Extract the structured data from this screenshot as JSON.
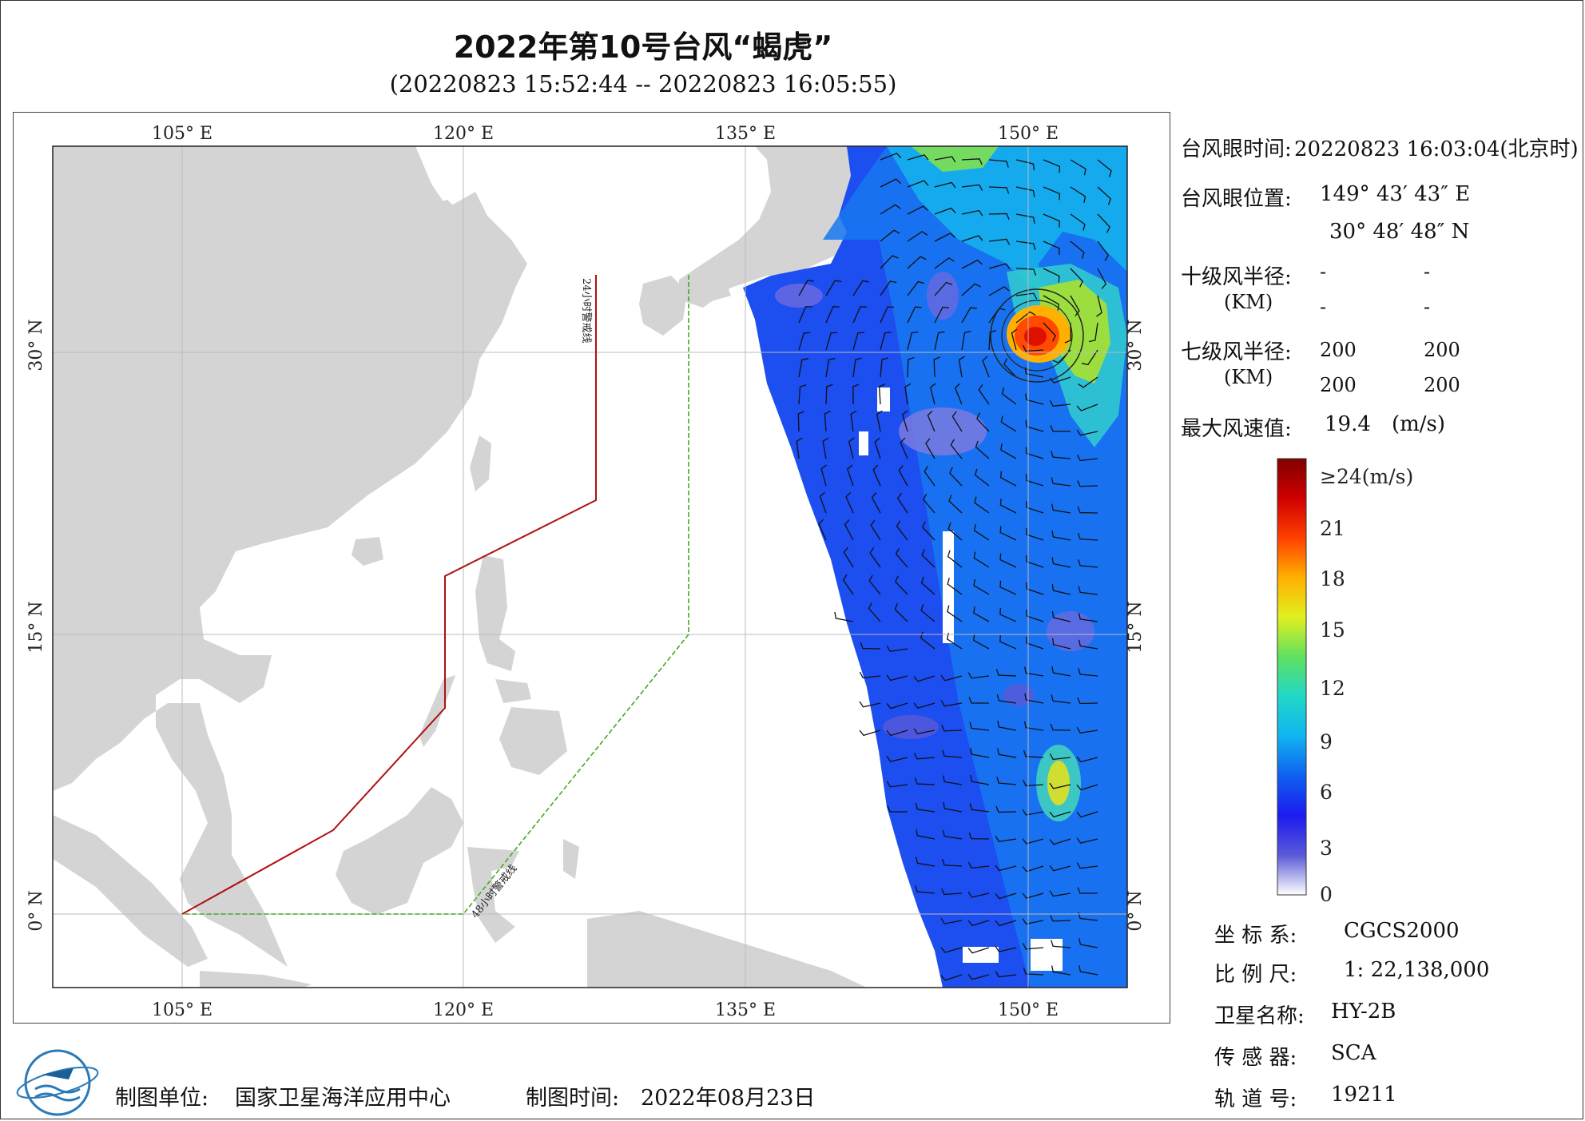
{
  "header": {
    "title": "2022年第10号台风“蝎虎”",
    "time_range": "(20220823 15:52:44 -- 20220823 16:05:55)"
  },
  "map": {
    "lon_labels": [
      "105° E",
      "120° E",
      "135° E",
      "150° E"
    ],
    "lat_labels": [
      "30° N",
      "15° N",
      "0° N"
    ],
    "warning_24h_label": "24小时警戒线",
    "warning_48h_label": "48小时警戒线",
    "colors": {
      "land": "#d4d4d4",
      "line_24h": "#b01010",
      "line_48h": "#44aa22"
    }
  },
  "info_panel": {
    "eye_time_label": "台风眼时间:",
    "eye_time_value": "20220823 16:03:04(北京时)",
    "eye_pos_label": "台风眼位置:",
    "eye_lon": "149° 43′ 43″ E",
    "eye_lat": "30° 48′ 48″ N",
    "r10_label": "十级风半径:",
    "r10_unit": "(KM)",
    "r10_values": [
      "-",
      "-",
      "-",
      "-"
    ],
    "r7_label": "七级风半径:",
    "r7_unit": "(KM)",
    "r7_values": [
      "200",
      "200",
      "200",
      "200"
    ],
    "max_wind_label": "最大风速值:",
    "max_wind_value": "19.4",
    "max_wind_unit": "(m/s)"
  },
  "colorbar": {
    "top_label": "≥24(m/s)",
    "ticks": [
      "21",
      "18",
      "15",
      "12",
      "9",
      "6",
      "3",
      "0"
    ],
    "stops": [
      "#ffffff",
      "#5a5ad8",
      "#1b1bf0",
      "#1060f0",
      "#10b4f0",
      "#20d8c8",
      "#60e060",
      "#e0f020",
      "#ffb000",
      "#ff4000",
      "#d00000",
      "#800000"
    ]
  },
  "metadata_panel": {
    "crs_label": "坐 标 系:",
    "crs_value": "CGCS2000",
    "scale_label": "比 例 尺:",
    "scale_value": "1: 22,138,000",
    "satellite_label": "卫星名称:",
    "satellite_value": "HY-2B",
    "sensor_label": "传 感 器:",
    "sensor_value": "SCA",
    "orbit_label": "轨 道 号:",
    "orbit_value": "19211"
  },
  "footer": {
    "unit_label": "制图单位:",
    "unit_value": "国家卫星海洋应用中心",
    "date_label": "制图时间:",
    "date_value": "2022年08月23日"
  }
}
